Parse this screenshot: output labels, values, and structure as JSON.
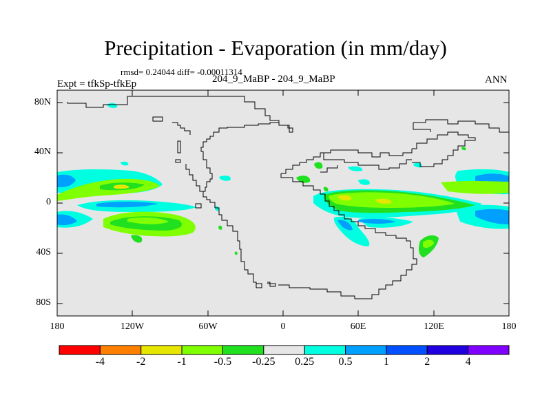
{
  "title": "Precipitation - Evaporation (in mm/day)",
  "stats": "rmsd= 0.24044 diff= -0.00011314",
  "case_label": "204_9_MaBP - 204_9_MaBP",
  "expt": "Expt = tfkSp-tfkEp",
  "season": "ANN",
  "lat_ticks": [
    "80N",
    "40N",
    "0",
    "40S",
    "80S"
  ],
  "lon_ticks": [
    "180",
    "120W",
    "60W",
    "0",
    "60E",
    "120E",
    "180"
  ],
  "colorbar": {
    "colors": [
      "#ff0000",
      "#ff8000",
      "#e6e600",
      "#80ff00",
      "#20e020",
      "#e6e6e6",
      "#00ffe0",
      "#00a0ff",
      "#0050ff",
      "#2000e0",
      "#8000ff"
    ],
    "labels": [
      "-4",
      "-2",
      "-1",
      "-0.5",
      "-0.25",
      "0.25",
      "0.5",
      "1",
      "2",
      "4"
    ]
  },
  "colors": {
    "background": "#e6e6e6",
    "coast": "#000000"
  }
}
